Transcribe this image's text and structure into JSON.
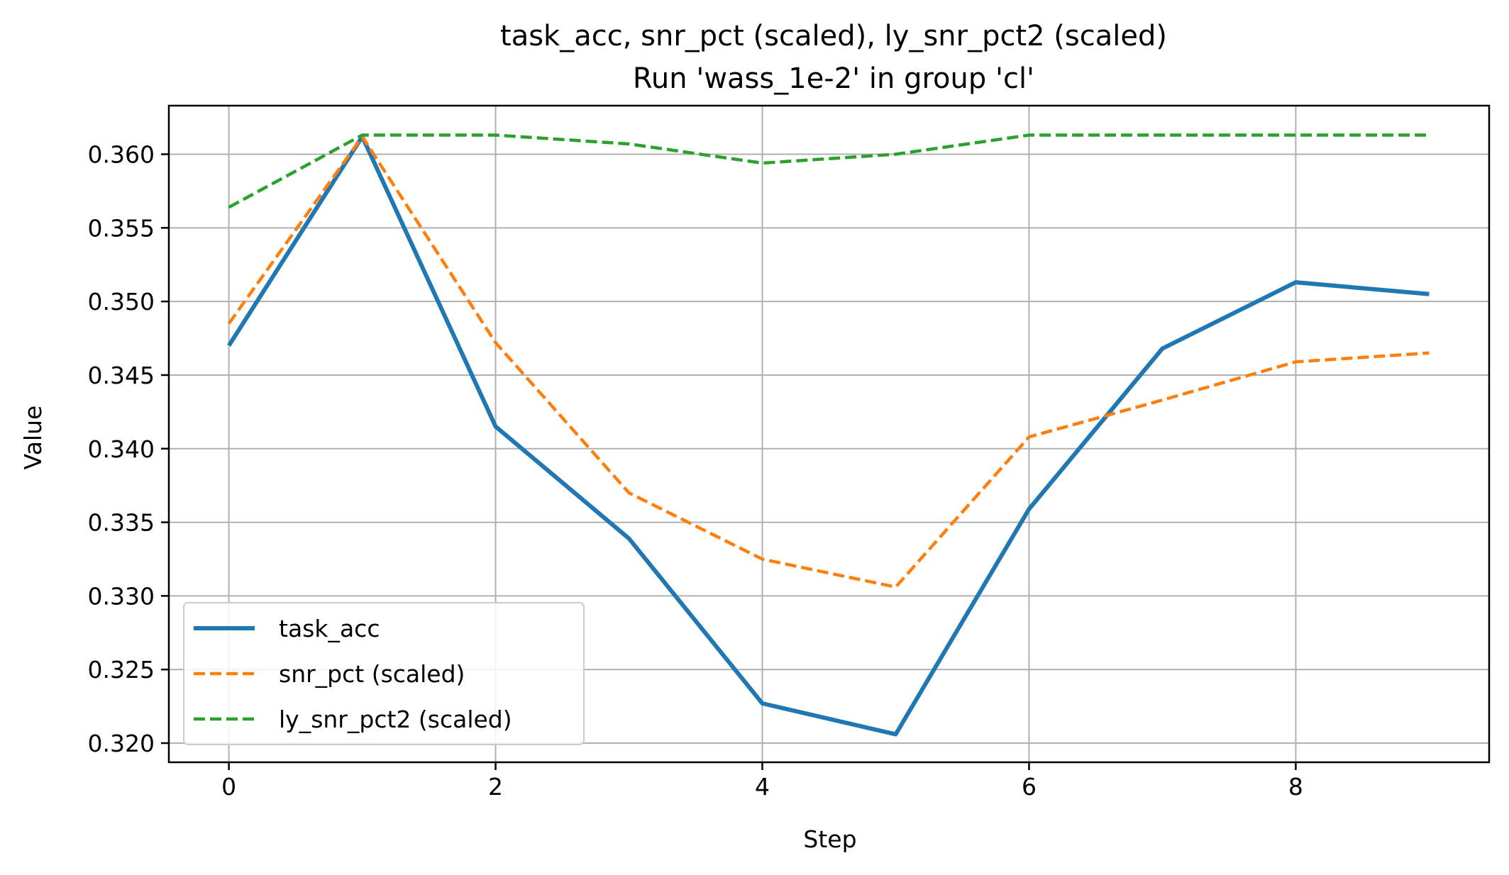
{
  "chart_data": {
    "type": "line",
    "title": "task_acc, snr_pct (scaled), ly_snr_pct2 (scaled)",
    "subtitle": "Run 'wass_1e-2' in group 'cl'",
    "xlabel": "Step",
    "ylabel": "Value",
    "xlim": [
      -0.45,
      9.45
    ],
    "ylim": [
      0.3187,
      0.3633
    ],
    "x_ticks": [
      "0",
      "2",
      "4",
      "6",
      "8"
    ],
    "x_tick_values": [
      0,
      2,
      4,
      6,
      8
    ],
    "y_ticks": [
      "0.320",
      "0.325",
      "0.330",
      "0.335",
      "0.340",
      "0.345",
      "0.350",
      "0.355",
      "0.360"
    ],
    "y_tick_values": [
      0.32,
      0.325,
      0.33,
      0.335,
      0.34,
      0.345,
      0.35,
      0.355,
      0.36
    ],
    "grid": true,
    "legend_position": "lower-left",
    "x": [
      0,
      1,
      2,
      3,
      4,
      5,
      6,
      7,
      8,
      9
    ],
    "series": [
      {
        "name": "task_acc",
        "style": "solid",
        "color": "#1f77b4",
        "values": [
          0.347,
          0.3612,
          0.3415,
          0.3339,
          0.3227,
          0.3206,
          0.3359,
          0.3468,
          0.3513,
          0.3505
        ]
      },
      {
        "name": "snr_pct (scaled)",
        "style": "dashed",
        "color": "#ff7f0e",
        "values": [
          0.3485,
          0.3612,
          0.3472,
          0.337,
          0.3325,
          0.3306,
          0.3408,
          0.3433,
          0.3459,
          0.3465
        ]
      },
      {
        "name": "ly_snr_pct2 (scaled)",
        "style": "dashed",
        "color": "#2ca02c",
        "values": [
          0.3564,
          0.3613,
          0.3613,
          0.3607,
          0.3594,
          0.36,
          0.3613,
          0.3613,
          0.3613,
          0.3613
        ]
      }
    ]
  }
}
